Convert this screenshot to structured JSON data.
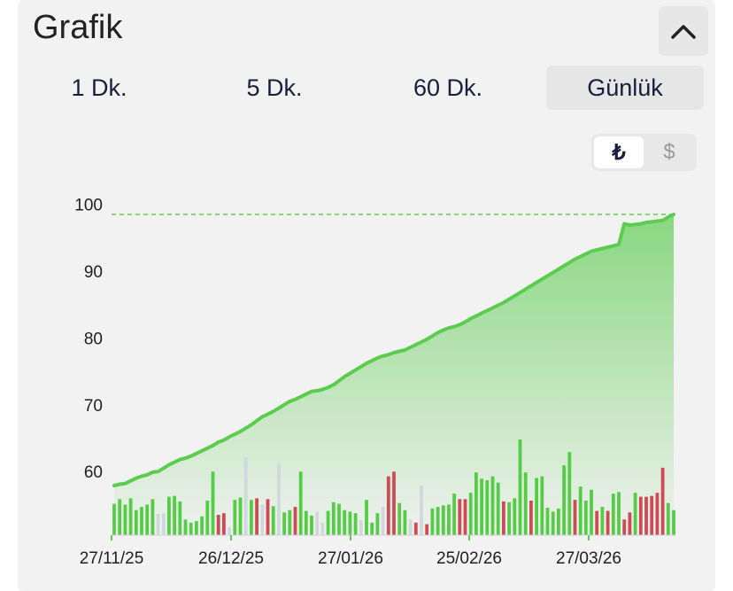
{
  "header": {
    "title": "Grafik"
  },
  "tabs": [
    {
      "label": "1 Dk.",
      "active": false
    },
    {
      "label": "5 Dk.",
      "active": false
    },
    {
      "label": "60 Dk.",
      "active": false
    },
    {
      "label": "Günlük",
      "active": true
    }
  ],
  "currency": {
    "try_label": "₺",
    "usd_label": "$",
    "selected": "TRY"
  },
  "colors": {
    "line": "#5ccc4f",
    "up_bar": "#55cc46",
    "down_bar": "#cc4b55",
    "neutral_bar": "#cfd8dc",
    "reference_line": "#5ccc4f"
  },
  "chart_data": {
    "type": "area",
    "title": "",
    "xlabel": "",
    "ylabel": "",
    "ylim": [
      52,
      101
    ],
    "yticks": [
      60,
      70,
      80,
      90,
      100
    ],
    "xtick_labels": [
      "27/11/25",
      "26/12/25",
      "27/01/26",
      "25/02/26",
      "27/03/26"
    ],
    "reference_line": {
      "value": 98.5,
      "style": "dashed"
    },
    "grid": false,
    "price": [
      57.9,
      58.1,
      58.2,
      58.6,
      59.0,
      59.3,
      59.5,
      59.9,
      60.0,
      60.5,
      61.0,
      61.4,
      61.8,
      62.0,
      62.3,
      62.7,
      63.1,
      63.5,
      63.9,
      64.4,
      64.7,
      65.2,
      65.6,
      66.0,
      66.5,
      67.0,
      67.6,
      68.2,
      68.6,
      69.0,
      69.5,
      70.0,
      70.5,
      70.8,
      71.2,
      71.6,
      72.0,
      72.1,
      72.3,
      72.6,
      73.0,
      73.6,
      74.2,
      74.7,
      75.2,
      75.7,
      76.2,
      76.6,
      77.0,
      77.3,
      77.5,
      77.8,
      78.0,
      78.2,
      78.6,
      79.0,
      79.4,
      79.8,
      80.3,
      80.8,
      81.2,
      81.5,
      81.7,
      82.0,
      82.4,
      82.9,
      83.3,
      83.7,
      84.1,
      84.5,
      84.9,
      85.3,
      85.8,
      86.3,
      86.8,
      87.3,
      87.8,
      88.3,
      88.8,
      89.3,
      89.8,
      90.3,
      90.8,
      91.3,
      91.8,
      92.2,
      92.6,
      93.0,
      93.2,
      93.4,
      93.6,
      93.8,
      94.0,
      97.1,
      96.9,
      97.0,
      97.1,
      97.3,
      97.4,
      97.5,
      97.6,
      98.1,
      98.5
    ],
    "volume": [
      4.0,
      4.6,
      3.9,
      4.7,
      3.2,
      3.6,
      3.9,
      4.6,
      2.7,
      2.8,
      4.9,
      5.0,
      4.3,
      2.0,
      1.6,
      1.8,
      2.4,
      4.4,
      8.1,
      2.6,
      2.8,
      1.0,
      4.5,
      4.8,
      9.9,
      4.5,
      4.7,
      3.9,
      4.6,
      3.7,
      9.1,
      2.9,
      3.2,
      3.6,
      8.1,
      3.1,
      2.5,
      3.0,
      1.6,
      3.1,
      4.2,
      4.0,
      3.2,
      3.0,
      2.8,
      1.9,
      4.5,
      1.6,
      2.8,
      3.6,
      7.5,
      8.1,
      4.1,
      3.2,
      2.0,
      1.6,
      6.3,
      1.4,
      3.4,
      3.6,
      3.8,
      3.9,
      5.3,
      4.6,
      4.6,
      5.4,
      8.0,
      7.2,
      7.0,
      7.5,
      6.7,
      4.3,
      4.2,
      4.7,
      12.2,
      8.0,
      4.4,
      7.3,
      7.5,
      3.5,
      3.0,
      3.4,
      8.9,
      10.6,
      4.5,
      6.2,
      4.4,
      5.8,
      3.1,
      3.6,
      3.1,
      5.3,
      5.5,
      2.0,
      2.9,
      5.4,
      4.9,
      4.9,
      5.0,
      5.4,
      8.6,
      4.1,
      3.2
    ],
    "volume_direction": [
      "up",
      "up",
      "up",
      "up",
      "up",
      "up",
      "up",
      "up",
      "neutral",
      "neutral",
      "up",
      "up",
      "up",
      "up",
      "up",
      "up",
      "up",
      "up",
      "up",
      "down",
      "down",
      "neutral",
      "up",
      "up",
      "neutral",
      "up",
      "down",
      "neutral",
      "down",
      "up",
      "neutral",
      "up",
      "up",
      "down",
      "up",
      "up",
      "up",
      "neutral",
      "neutral",
      "up",
      "up",
      "up",
      "up",
      "up",
      "up",
      "neutral",
      "up",
      "up",
      "up",
      "neutral",
      "down",
      "down",
      "up",
      "up",
      "neutral",
      "down",
      "neutral",
      "down",
      "up",
      "up",
      "up",
      "up",
      "up",
      "down",
      "down",
      "up",
      "up",
      "up",
      "up",
      "up",
      "up",
      "down",
      "up",
      "up",
      "up",
      "up",
      "down",
      "up",
      "up",
      "up",
      "up",
      "up",
      "up",
      "up",
      "down",
      "up",
      "up",
      "up",
      "down",
      "up",
      "down",
      "up",
      "up",
      "down",
      "down",
      "up",
      "down",
      "down",
      "down",
      "down",
      "down",
      "up",
      "up"
    ]
  }
}
